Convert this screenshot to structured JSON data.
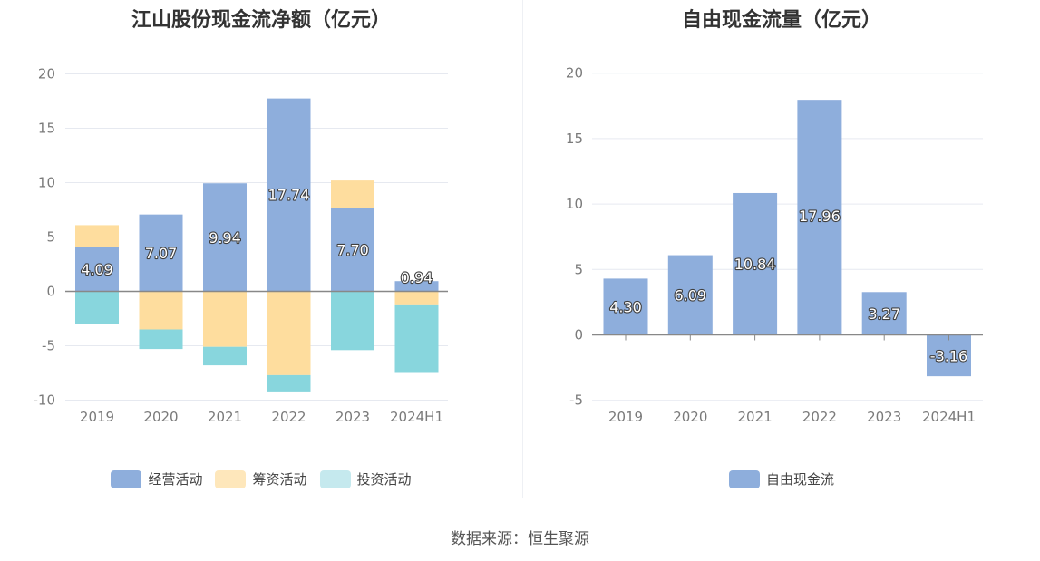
{
  "source": "数据来源：恒生聚源",
  "colors": {
    "operating": "#8eaedc",
    "financing": "#fedd9e",
    "investing": "#88d6dd",
    "investing_legend": "#c5e9ee",
    "free_cash": "#8eaedc",
    "grid": "#e6e9f0",
    "axis": "#888888"
  },
  "chart_data": [
    {
      "type": "bar",
      "stacked": true,
      "title": "江山股份现金流净额（亿元）",
      "categories": [
        "2019",
        "2020",
        "2021",
        "2022",
        "2023",
        "2024H1"
      ],
      "ylim": [
        -10,
        20
      ],
      "yticks": [
        20,
        15,
        10,
        5,
        0,
        -5,
        -10
      ],
      "grid": true,
      "legend_position": "bottom",
      "series": [
        {
          "name": "经营活动",
          "values": [
            4.09,
            7.07,
            9.94,
            17.74,
            7.7,
            0.94
          ],
          "labels": [
            "4.09",
            "7.07",
            "9.94",
            "17.74",
            "7.70",
            "0.94"
          ]
        },
        {
          "name": "筹资活动",
          "values": [
            2.0,
            -3.5,
            -5.1,
            -7.7,
            2.5,
            -1.2
          ]
        },
        {
          "name": "投资活动",
          "values": [
            -3.0,
            -1.8,
            -1.7,
            -1.5,
            -5.4,
            -6.3
          ]
        }
      ]
    },
    {
      "type": "bar",
      "title": "自由现金流量（亿元）",
      "categories": [
        "2019",
        "2020",
        "2021",
        "2022",
        "2023",
        "2024H1"
      ],
      "ylim": [
        -5,
        20
      ],
      "yticks": [
        20,
        15,
        10,
        5,
        0,
        -5
      ],
      "grid": true,
      "legend_position": "bottom",
      "series": [
        {
          "name": "自由现金流",
          "values": [
            4.3,
            6.09,
            10.84,
            17.96,
            3.27,
            -3.16
          ],
          "labels": [
            "4.30",
            "6.09",
            "10.84",
            "17.96",
            "3.27",
            "-3.16"
          ]
        }
      ]
    }
  ]
}
